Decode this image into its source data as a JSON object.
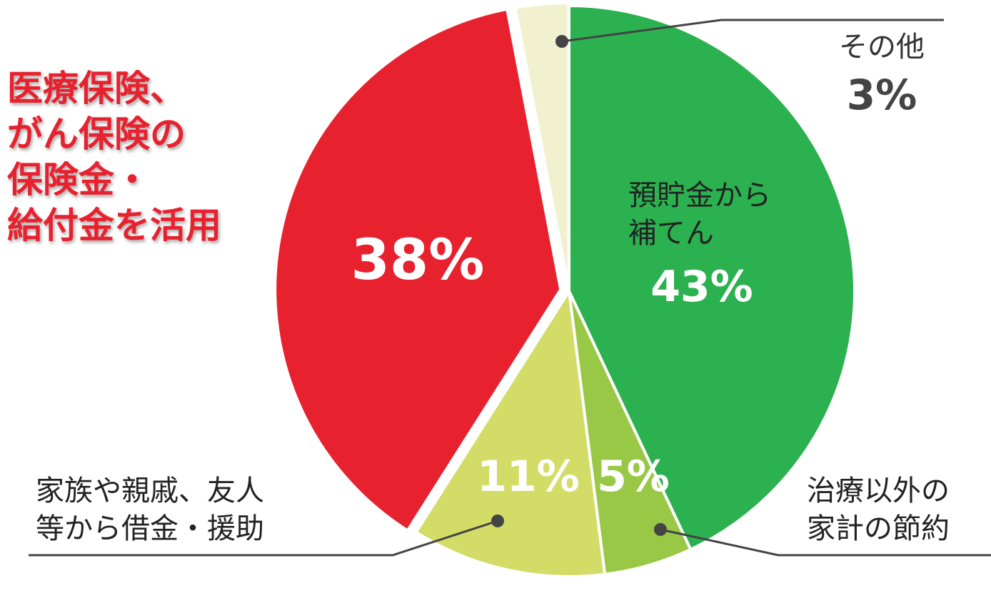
{
  "chart_data": {
    "type": "pie",
    "categories": [
      "預貯金から\n補てん",
      "治療以外の\n家計の節約",
      "家族や親戚、友人\n等から借金・援助",
      "医療保険、\nがん保険の\n保険金・\n給付金を活用",
      "その他"
    ],
    "values": [
      43,
      5,
      11,
      38,
      3
    ],
    "value_labels": [
      "43%",
      "5%",
      "11%",
      "38%",
      "3%"
    ],
    "colors": [
      "#2bb14f",
      "#98c846",
      "#d3dc66",
      "#e8212f",
      "#f1f0cf"
    ]
  }
}
